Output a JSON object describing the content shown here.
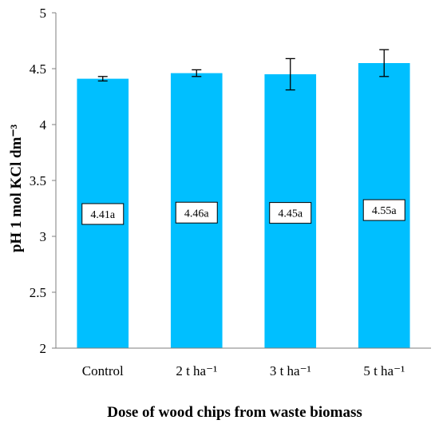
{
  "chart_data": {
    "type": "bar",
    "title": "",
    "xlabel": "Dose of wood chips from waste biomass",
    "ylabel": "pH 1 mol KCl dm⁻³",
    "categories": [
      "Control",
      "2 t ha⁻¹",
      "3 t ha⁻¹",
      "5 t ha⁻¹"
    ],
    "values": [
      4.41,
      4.46,
      4.45,
      4.55
    ],
    "error_bars": [
      0.02,
      0.03,
      0.14,
      0.12
    ],
    "data_labels": [
      "4.41a",
      "4.46a",
      "4.45a",
      "4.55a"
    ],
    "ylim": [
      2,
      5
    ],
    "yticks": [
      "2",
      "2.5",
      "3",
      "3.5",
      "4",
      "4.5",
      "5"
    ],
    "grid": false,
    "legend": "none",
    "bar_color": "#00bfff"
  }
}
